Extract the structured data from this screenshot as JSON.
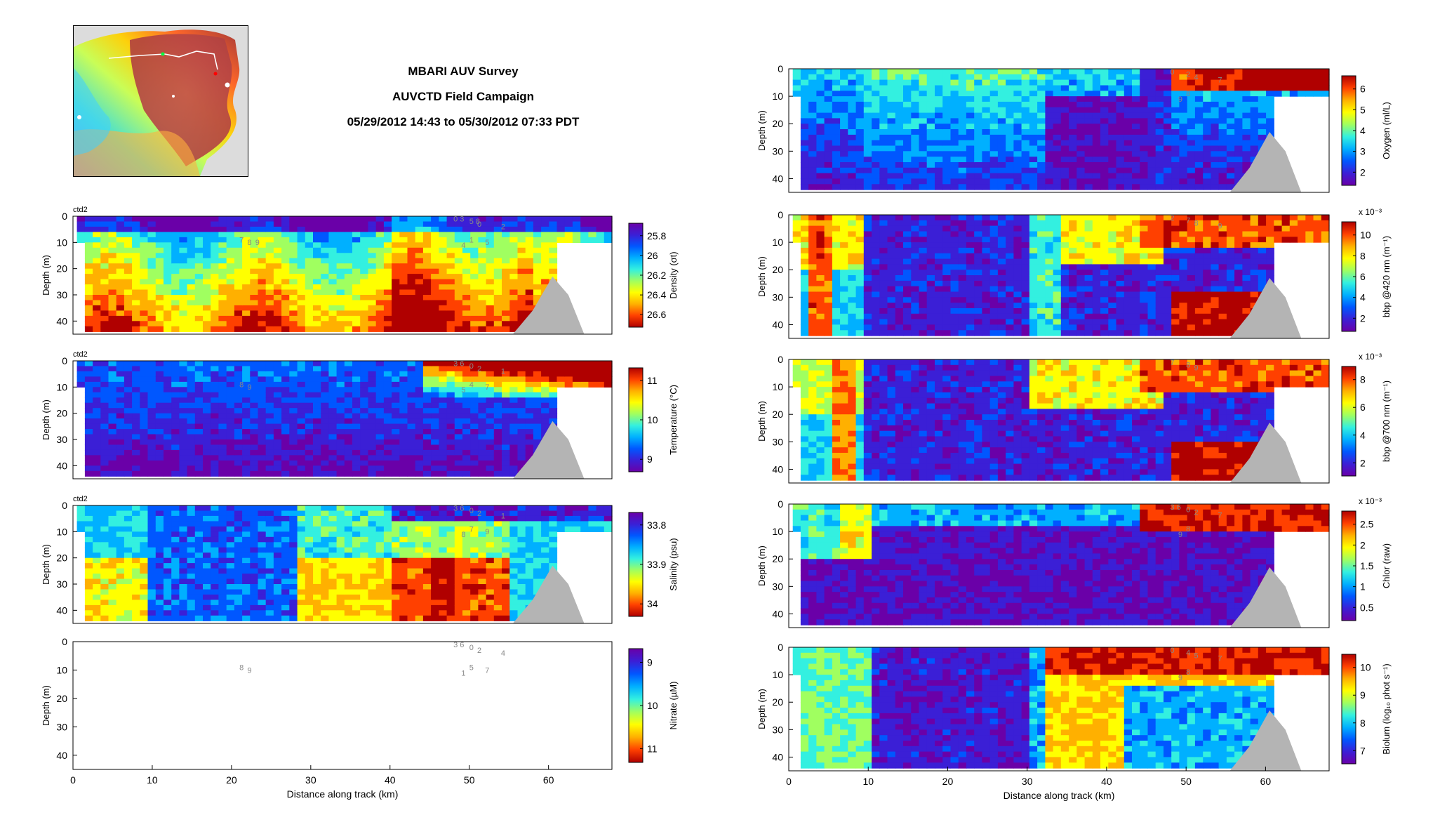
{
  "figure": {
    "title": "MBARI AUV Survey",
    "subtitle": "AUVCTD Field Campaign",
    "time_range": "05/29/2012 14:43 to 05/30/2012 07:33 PDT"
  },
  "palettes": {
    "jet": [
      "#6a00a8",
      "#3b1fd6",
      "#0057ff",
      "#00b0ff",
      "#33f0e0",
      "#a0ff60",
      "#ffff00",
      "#ffb000",
      "#ff4000",
      "#b00000"
    ],
    "bathymetry": "#b4b4b4"
  },
  "chart_data": [
    {
      "type": "heatmap",
      "id": "density",
      "label": "ctd2",
      "xlabel": "",
      "ylabel": "Depth (m)",
      "xlim": [
        0,
        68
      ],
      "ylim": [
        0,
        45
      ],
      "y_ticks": [
        0,
        10,
        20,
        30,
        40
      ],
      "colorbar": {
        "label": "Density (σt)",
        "ticks": [
          "25.8",
          "26",
          "26.2",
          "26.4",
          "26.6"
        ]
      },
      "annotations": [
        "0 3",
        "5 8",
        "0",
        "2",
        "1",
        "4",
        "5",
        "7",
        "8",
        "9"
      ]
    },
    {
      "type": "heatmap",
      "id": "temperature",
      "label": "ctd2",
      "xlabel": "",
      "ylabel": "Depth (m)",
      "xlim": [
        0,
        68
      ],
      "ylim": [
        0,
        45
      ],
      "y_ticks": [
        0,
        10,
        20,
        30,
        40
      ],
      "colorbar": {
        "label": "Temperature (°C)",
        "ticks": [
          "11",
          "10",
          "9"
        ]
      },
      "annotations": [
        "3 6",
        "0",
        "2",
        "1",
        "4",
        "5",
        "7",
        "8",
        "9"
      ]
    },
    {
      "type": "heatmap",
      "id": "salinity",
      "label": "ctd2",
      "xlabel": "",
      "ylabel": "Depth (m)",
      "xlim": [
        0,
        68
      ],
      "ylim": [
        0,
        45
      ],
      "y_ticks": [
        0,
        10,
        20,
        30,
        40
      ],
      "colorbar": {
        "label": "Salinity (psu)",
        "ticks": [
          "33.8",
          "33.9",
          "34"
        ]
      },
      "annotations": [
        "3 6",
        "0",
        "2",
        "1",
        "7",
        "8",
        "9"
      ]
    },
    {
      "type": "heatmap",
      "id": "nitrate",
      "label": "",
      "xlabel": "Distance along track (km)",
      "ylabel": "Depth (m)",
      "xlim": [
        0,
        68
      ],
      "ylim": [
        0,
        45
      ],
      "x_ticks": [
        0,
        10,
        20,
        30,
        40,
        50,
        60
      ],
      "y_ticks": [
        0,
        10,
        20,
        30,
        40
      ],
      "colorbar": {
        "label": "Nitrate (µM)",
        "ticks": [
          "9",
          "10",
          "11"
        ]
      },
      "annotations": [
        "3 6",
        "0",
        "2",
        "4",
        "5",
        "1",
        "7",
        "8",
        "9"
      ]
    },
    {
      "type": "heatmap",
      "id": "oxygen",
      "label": "",
      "xlabel": "",
      "ylabel": "Depth (m)",
      "xlim": [
        0,
        68
      ],
      "ylim": [
        0,
        45
      ],
      "y_ticks": [
        0,
        10,
        20,
        30,
        40
      ],
      "colorbar": {
        "label": "Oxygen (ml/L)",
        "ticks": [
          "6",
          "5",
          "4",
          "3",
          "2"
        ]
      },
      "annotations": [
        "0",
        "2",
        "4",
        "7",
        "8",
        "9"
      ]
    },
    {
      "type": "heatmap",
      "id": "bbp420",
      "label": "",
      "xlabel": "",
      "ylabel": "Depth (m)",
      "xlim": [
        0,
        68
      ],
      "ylim": [
        0,
        45
      ],
      "y_ticks": [
        0,
        10,
        20,
        30,
        40
      ],
      "colorbar": {
        "label": "bbp @420 nm (m⁻¹)",
        "ticks": [
          "10",
          "8",
          "6",
          "4",
          "2"
        ],
        "exponent": "x 10⁻³"
      },
      "annotations": [
        "2",
        "7",
        "8",
        "9"
      ]
    },
    {
      "type": "heatmap",
      "id": "bbp700",
      "label": "",
      "xlabel": "",
      "ylabel": "Depth (m)",
      "xlim": [
        0,
        68
      ],
      "ylim": [
        0,
        45
      ],
      "y_ticks": [
        0,
        10,
        20,
        30,
        40
      ],
      "colorbar": {
        "label": "bbp @700 nm (m⁻¹)",
        "ticks": [
          "8",
          "6",
          "4",
          "2"
        ],
        "exponent": "x 10⁻³"
      },
      "annotations": [
        "7",
        "8",
        "9"
      ]
    },
    {
      "type": "heatmap",
      "id": "chlor",
      "label": "",
      "xlabel": "",
      "ylabel": "Depth (m)",
      "xlim": [
        0,
        68
      ],
      "ylim": [
        0,
        45
      ],
      "y_ticks": [
        0,
        10,
        20,
        30,
        40
      ],
      "colorbar": {
        "label": "Chlor (raw)",
        "ticks": [
          "2.5",
          "2",
          "1.5",
          "1",
          "0.5"
        ],
        "exponent": "x 10⁻³"
      },
      "annotations": [
        "3 6",
        "0",
        "2",
        "7",
        "8",
        "9"
      ]
    },
    {
      "type": "heatmap",
      "id": "biolum",
      "label": "",
      "xlabel": "Distance along track (km)",
      "ylabel": "Depth (m)",
      "xlim": [
        0,
        68
      ],
      "ylim": [
        0,
        45
      ],
      "x_ticks": [
        0,
        10,
        20,
        30,
        40,
        50,
        60
      ],
      "y_ticks": [
        0,
        10,
        20,
        30,
        40
      ],
      "colorbar": {
        "label": "Biolum (log₁₀ phot s⁻¹)",
        "ticks": [
          "10",
          "9",
          "8",
          "7"
        ]
      },
      "annotations": [
        "0",
        "4",
        "5",
        "7",
        "8",
        "9"
      ]
    }
  ]
}
